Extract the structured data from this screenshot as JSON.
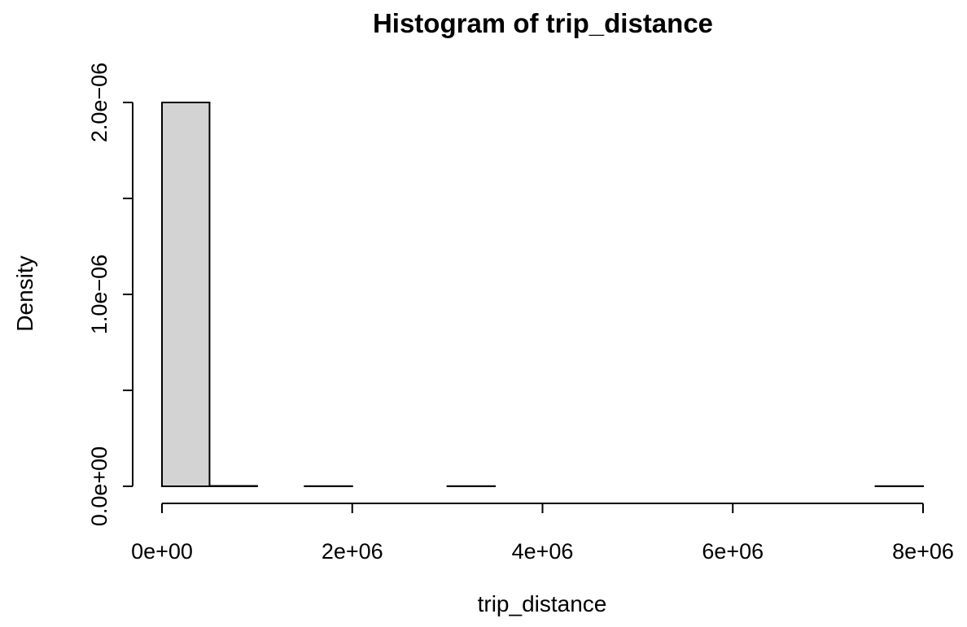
{
  "chart_data": {
    "type": "bar",
    "title": "Histogram of trip_distance",
    "xlabel": "trip_distance",
    "ylabel": "Density",
    "xlim": [
      0,
      8000000
    ],
    "ylim": [
      0,
      2e-06
    ],
    "x_ticks": [
      0,
      2000000,
      4000000,
      6000000,
      8000000
    ],
    "x_tick_labels": [
      "0e+00",
      "2e+06",
      "4e+06",
      "6e+06",
      "8e+06"
    ],
    "y_ticks": [
      0,
      5e-07,
      1e-06,
      1.5e-06,
      2e-06
    ],
    "y_tick_labels": [
      "0.0e+00",
      "",
      "1.0e-06",
      "",
      "2.0e-06"
    ],
    "bins": [
      {
        "x0": 0,
        "x1": 500000,
        "density": 2e-06
      },
      {
        "x0": 500000,
        "x1": 1000000,
        "density": 2e-09
      },
      {
        "x0": 1000000,
        "x1": 1500000,
        "density": 0
      },
      {
        "x0": 1500000,
        "x1": 2000000,
        "density": 1e-09
      },
      {
        "x0": 2000000,
        "x1": 2500000,
        "density": 0
      },
      {
        "x0": 2500000,
        "x1": 3000000,
        "density": 0
      },
      {
        "x0": 3000000,
        "x1": 3500000,
        "density": 1e-09
      },
      {
        "x0": 3500000,
        "x1": 4000000,
        "density": 0
      },
      {
        "x0": 4000000,
        "x1": 4500000,
        "density": 0
      },
      {
        "x0": 4500000,
        "x1": 5000000,
        "density": 0
      },
      {
        "x0": 5000000,
        "x1": 5500000,
        "density": 0
      },
      {
        "x0": 5500000,
        "x1": 6000000,
        "density": 0
      },
      {
        "x0": 6000000,
        "x1": 6500000,
        "density": 0
      },
      {
        "x0": 6500000,
        "x1": 7000000,
        "density": 0
      },
      {
        "x0": 7000000,
        "x1": 7500000,
        "density": 0
      },
      {
        "x0": 7500000,
        "x1": 8000000,
        "density": 1e-09
      }
    ],
    "bar_fill": "#d3d3d3",
    "bar_stroke": "#000000",
    "grid": false,
    "legend": "none"
  }
}
